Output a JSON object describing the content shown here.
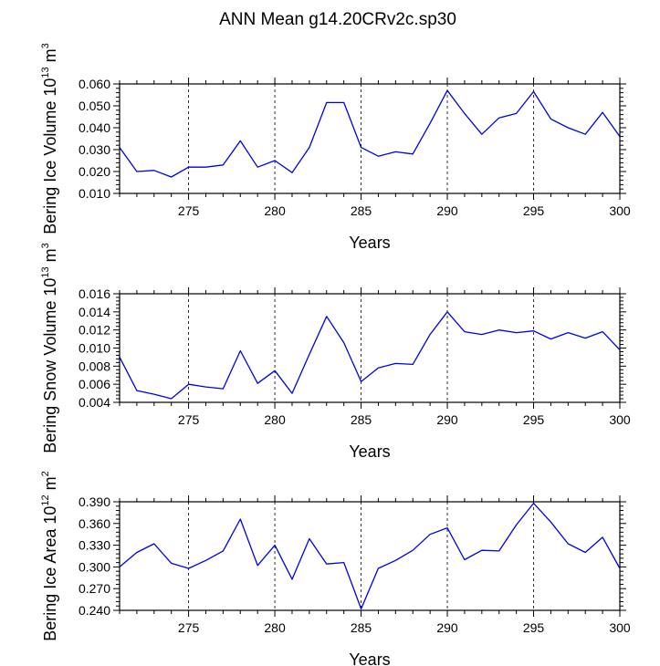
{
  "title": "ANN Mean g14.20CRv2c.sp30",
  "colors": {
    "line": "#0000ee",
    "frame": "#000000",
    "grid": "#000000"
  },
  "chart_data": [
    {
      "type": "line",
      "xlabel": "Years",
      "ylabel": {
        "prefix": "Bering Ice Volume 10",
        "exp": "13",
        "unit": " m",
        "unit_exp": "3"
      },
      "xlim": [
        271,
        300
      ],
      "ylim": [
        0.01,
        0.06
      ],
      "xticks": [
        "275",
        "280",
        "285",
        "290",
        "295",
        "300"
      ],
      "yticks": [
        "0.010",
        "0.020",
        "0.030",
        "0.040",
        "0.050",
        "0.060"
      ],
      "grid": "dashed vertical at major x ticks",
      "x": [
        271,
        272,
        273,
        274,
        275,
        276,
        277,
        278,
        279,
        280,
        281,
        282,
        283,
        284,
        285,
        286,
        287,
        288,
        289,
        290,
        291,
        292,
        293,
        294,
        295,
        296,
        297,
        298,
        299,
        300
      ],
      "series": [
        {
          "values": [
            0.031,
            0.02,
            0.0205,
            0.0175,
            0.022,
            0.022,
            0.023,
            0.034,
            0.022,
            0.025,
            0.0195,
            0.031,
            0.0515,
            0.0515,
            0.031,
            0.027,
            0.029,
            0.028,
            0.042,
            0.057,
            0.0465,
            0.037,
            0.0445,
            0.0465,
            0.0565,
            0.044,
            0.04,
            0.037,
            0.047,
            0.036
          ]
        }
      ]
    },
    {
      "type": "line",
      "xlabel": "Years",
      "ylabel": {
        "prefix": "Bering Snow Volume 10",
        "exp": "13",
        "unit": " m",
        "unit_exp": "3"
      },
      "xlim": [
        271,
        300
      ],
      "ylim": [
        0.004,
        0.016
      ],
      "xticks": [
        "275",
        "280",
        "285",
        "290",
        "295",
        "300"
      ],
      "yticks": [
        "0.004",
        "0.006",
        "0.008",
        "0.010",
        "0.012",
        "0.014",
        "0.016"
      ],
      "grid": "dashed vertical at major x ticks",
      "x": [
        271,
        272,
        273,
        274,
        275,
        276,
        277,
        278,
        279,
        280,
        281,
        282,
        283,
        284,
        285,
        286,
        287,
        288,
        289,
        290,
        291,
        292,
        293,
        294,
        295,
        296,
        297,
        298,
        299,
        300
      ],
      "series": [
        {
          "values": [
            0.009,
            0.0053,
            0.0049,
            0.0044,
            0.006,
            0.0057,
            0.0055,
            0.0097,
            0.0061,
            0.0075,
            0.005,
            0.0093,
            0.0135,
            0.0106,
            0.0063,
            0.0078,
            0.0083,
            0.0082,
            0.0115,
            0.014,
            0.0118,
            0.0115,
            0.012,
            0.0117,
            0.0119,
            0.011,
            0.0117,
            0.0111,
            0.0118,
            0.0098
          ]
        }
      ]
    },
    {
      "type": "line",
      "xlabel": "Years",
      "ylabel": {
        "prefix": "Bering Ice Area 10",
        "exp": "12",
        "unit": " m",
        "unit_exp": "2"
      },
      "xlim": [
        271,
        300
      ],
      "ylim": [
        0.24,
        0.39
      ],
      "xticks": [
        "275",
        "280",
        "285",
        "290",
        "295",
        "300"
      ],
      "yticks": [
        "0.240",
        "0.270",
        "0.300",
        "0.330",
        "0.360",
        "0.390"
      ],
      "grid": "dashed vertical at major x ticks",
      "x": [
        271,
        272,
        273,
        274,
        275,
        276,
        277,
        278,
        279,
        280,
        281,
        282,
        283,
        284,
        285,
        286,
        287,
        288,
        289,
        290,
        291,
        292,
        293,
        294,
        295,
        296,
        297,
        298,
        299,
        300
      ],
      "series": [
        {
          "values": [
            0.3,
            0.32,
            0.332,
            0.305,
            0.298,
            0.309,
            0.322,
            0.366,
            0.302,
            0.33,
            0.283,
            0.339,
            0.304,
            0.306,
            0.242,
            0.298,
            0.309,
            0.323,
            0.345,
            0.354,
            0.31,
            0.323,
            0.322,
            0.358,
            0.388,
            0.362,
            0.332,
            0.32,
            0.341,
            0.298
          ]
        }
      ]
    }
  ]
}
